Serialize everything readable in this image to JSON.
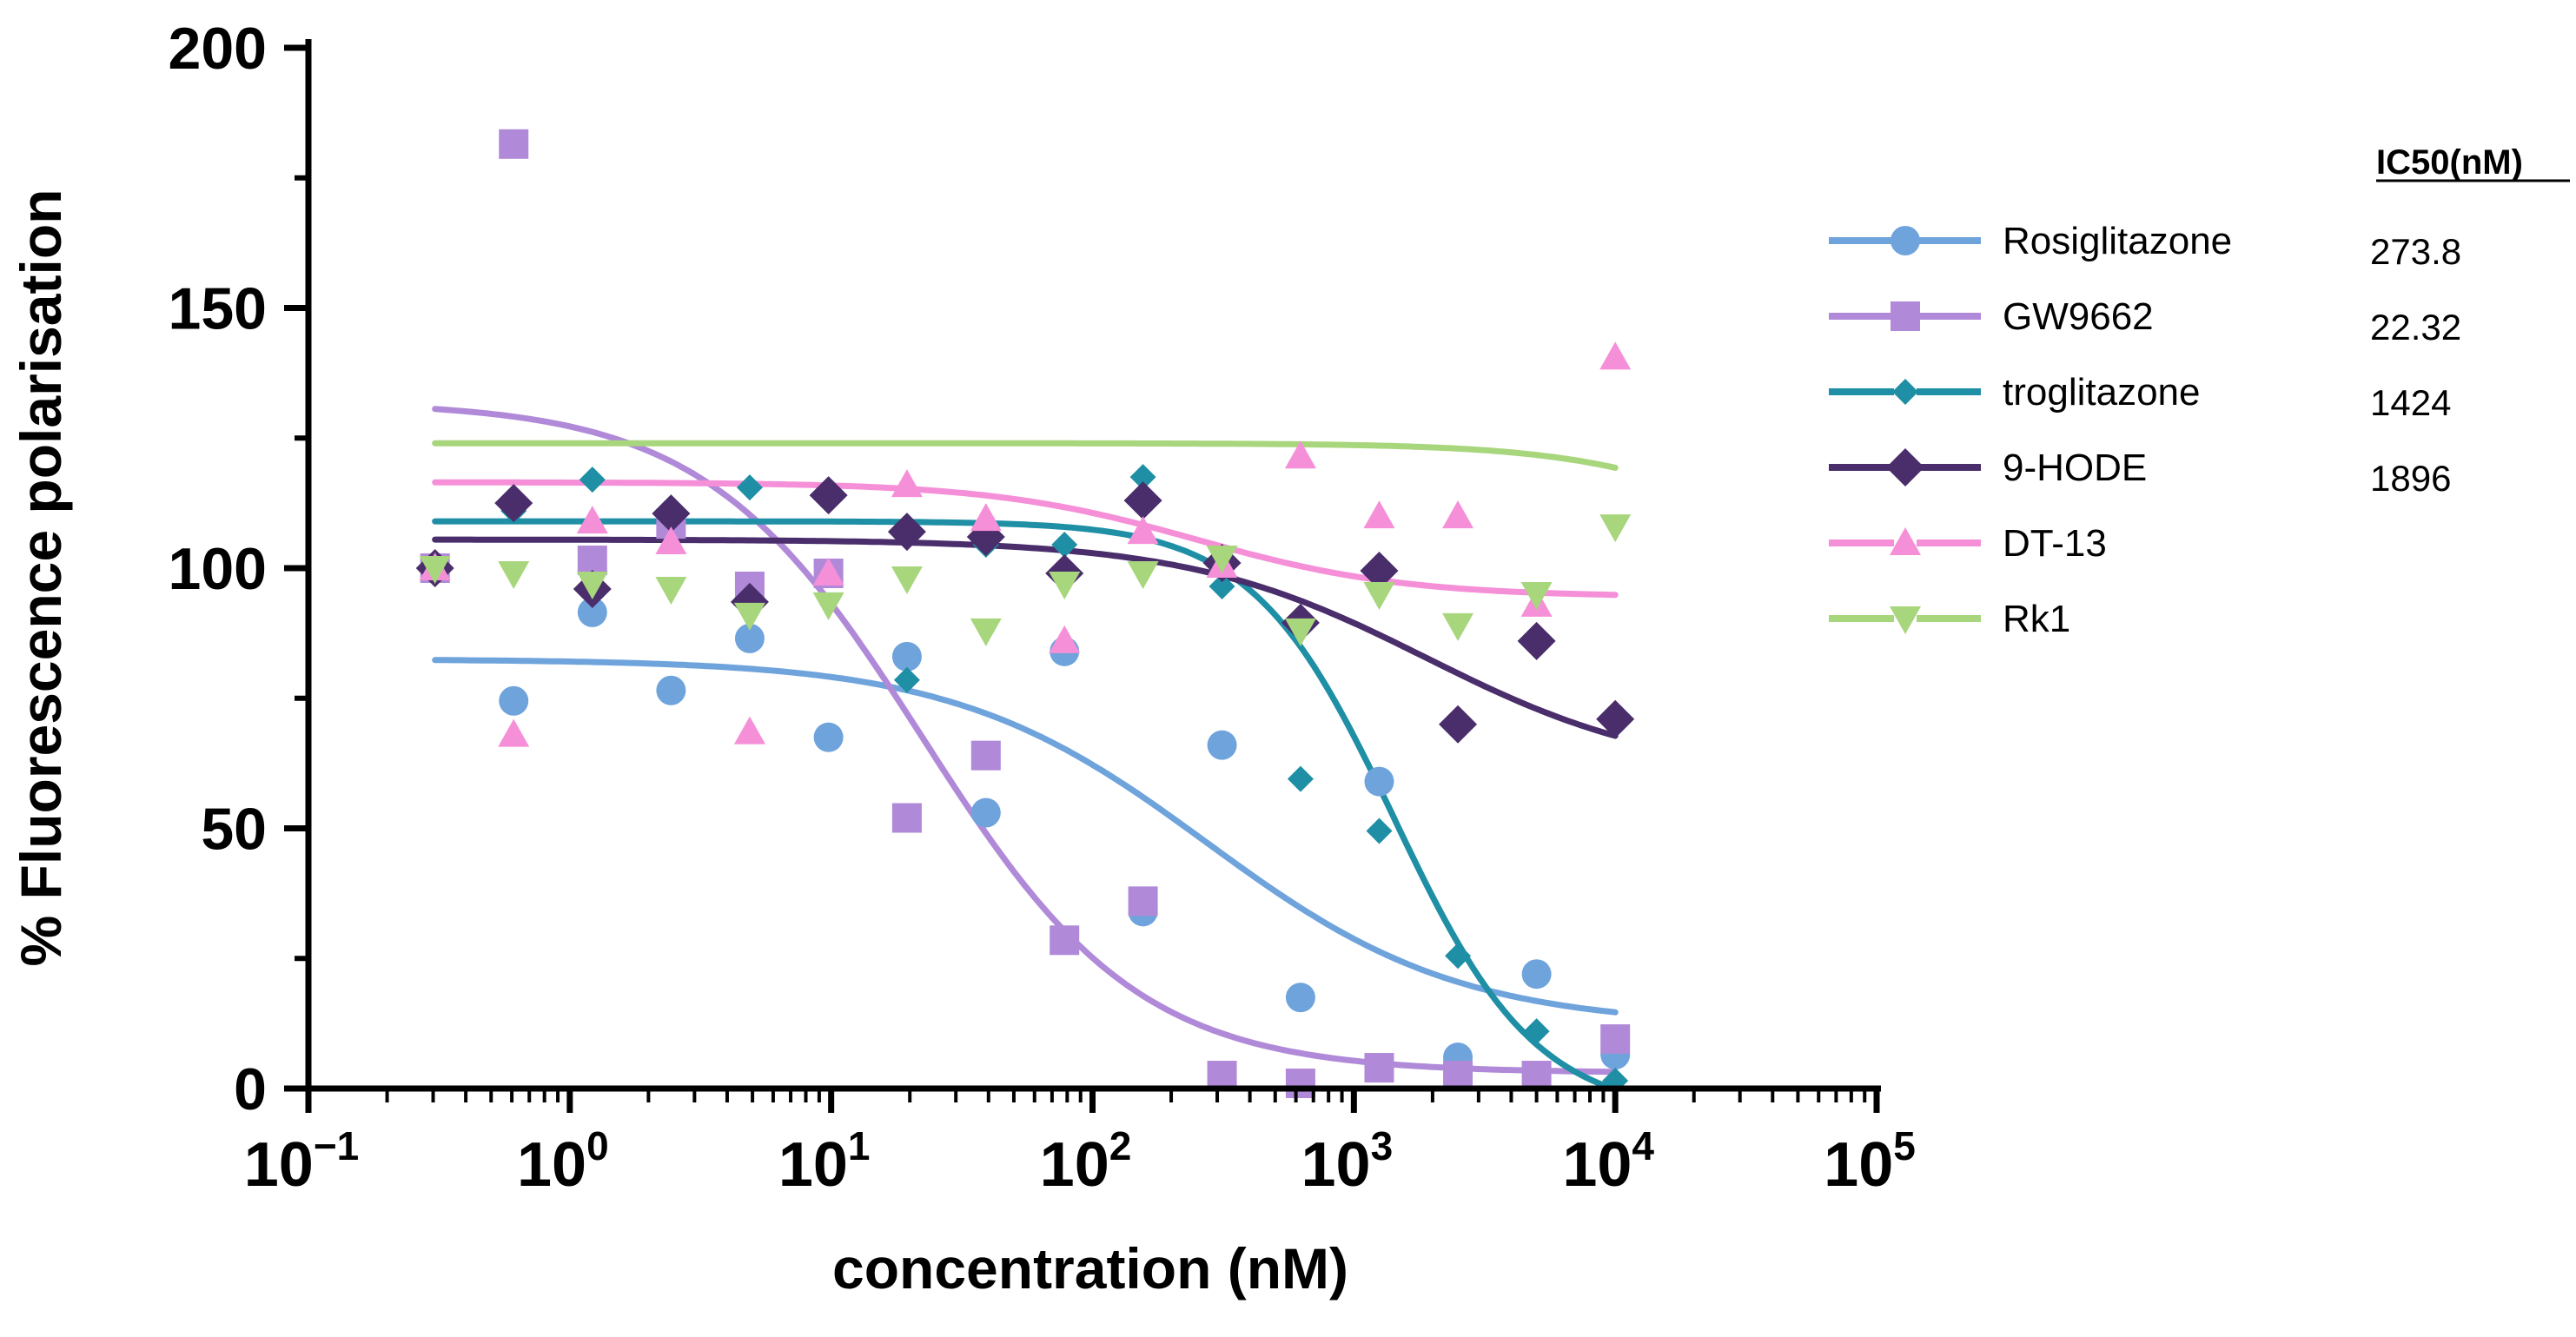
{
  "chart_data": {
    "type": "scatter",
    "xlabel": "concentration (nM)",
    "ylabel": "% Fluorescence polarisation",
    "xscale": "log",
    "xlim": [
      0.1,
      100000
    ],
    "ylim": [
      0,
      200
    ],
    "x_ticks": [
      {
        "base": "10",
        "exp": "−1"
      },
      {
        "base": "10",
        "exp": "0"
      },
      {
        "base": "10",
        "exp": "1"
      },
      {
        "base": "10",
        "exp": "2"
      },
      {
        "base": "10",
        "exp": "3"
      },
      {
        "base": "10",
        "exp": "4"
      },
      {
        "base": "10",
        "exp": "5"
      }
    ],
    "y_ticks": [
      "0",
      "50",
      "100",
      "150",
      "200"
    ],
    "legend_position": "right",
    "ic50_header": "IC50(nM)",
    "series": [
      {
        "name": "Rosiglitazone",
        "ic50": "273.8",
        "color": "#6fa3dc",
        "marker": "circle",
        "x": [
          0.305,
          0.61,
          1.22,
          2.44,
          4.88,
          9.77,
          19.5,
          39.1,
          78.1,
          156,
          313,
          625,
          1250,
          2500,
          5000,
          10000
        ],
        "y": [
          100,
          74.5,
          91.5,
          76.5,
          86.5,
          67.5,
          83,
          53,
          84,
          34,
          66,
          17.5,
          59,
          6,
          22,
          6.5
        ],
        "fit": {
          "top": 82.5,
          "bottom": 12,
          "ic50": 273.8,
          "hill": 0.9
        }
      },
      {
        "name": "GW9662",
        "ic50": "22.32",
        "color": "#b08ad8",
        "marker": "square",
        "x": [
          0.305,
          0.61,
          1.22,
          2.44,
          4.88,
          9.77,
          19.5,
          39.1,
          78.1,
          156,
          313,
          625,
          1250,
          2500,
          5000,
          10000
        ],
        "y": [
          100,
          181.5,
          101.5,
          108.5,
          96.5,
          99,
          52,
          64,
          28.5,
          36,
          2.5,
          1,
          4,
          2.5,
          2.5,
          9.5
        ],
        "fit": {
          "top": 132,
          "bottom": 3,
          "ic50": 22.32,
          "hill": 1.05
        }
      },
      {
        "name": "troglitazone",
        "ic50": "1424",
        "color": "#1f8fa5",
        "marker": "diamond",
        "x": [
          0.305,
          0.61,
          1.22,
          2.44,
          4.88,
          9.77,
          19.5,
          39.1,
          78.1,
          156,
          313,
          625,
          1250,
          2500,
          5000,
          10000
        ],
        "y": [
          100,
          111,
          117,
          110,
          115.5,
          113,
          78.5,
          104.5,
          104.5,
          117.5,
          96.5,
          59.5,
          49.5,
          25.5,
          11,
          1.5
        ],
        "fit": {
          "top": 109,
          "bottom": -5,
          "ic50": 1424,
          "hill": 1.6
        }
      },
      {
        "name": "9-HODE",
        "ic50": "1896",
        "color": "#4a2d6b",
        "marker": "diamond-large",
        "x": [
          0.305,
          0.61,
          1.22,
          2.44,
          4.88,
          9.77,
          19.5,
          39.1,
          78.1,
          156,
          313,
          625,
          1250,
          2500,
          5000,
          10000
        ],
        "y": [
          100,
          112.5,
          96,
          110.5,
          93.5,
          114,
          107,
          106,
          99,
          113,
          101,
          89.5,
          99.5,
          70,
          86,
          71
        ],
        "fit": {
          "top": 105.5,
          "bottom": 60,
          "ic50": 1896,
          "hill": 0.95
        }
      },
      {
        "name": "DT-13",
        "ic50": "",
        "color": "#f58fd8",
        "marker": "triangle-up",
        "x": [
          0.305,
          0.61,
          1.22,
          2.44,
          4.88,
          9.77,
          19.5,
          39.1,
          78.1,
          156,
          313,
          625,
          1250,
          2500,
          5000,
          10000
        ],
        "y": [
          100,
          68,
          109,
          105,
          68.5,
          99,
          116,
          109.5,
          86,
          107,
          100.5,
          121.5,
          110,
          110,
          93,
          140.5
        ],
        "fit": {
          "top": 116.5,
          "bottom": 94.5,
          "ic50": 250,
          "hill": 1.1
        }
      },
      {
        "name": "Rk1",
        "ic50": "",
        "color": "#a8d67d",
        "marker": "triangle-down",
        "x": [
          0.305,
          0.61,
          1.22,
          2.44,
          4.88,
          9.77,
          19.5,
          39.1,
          78.1,
          156,
          313,
          625,
          1250,
          2500,
          5000,
          10000
        ],
        "y": [
          100,
          99,
          97,
          96,
          91,
          93,
          98,
          88,
          97,
          99,
          102,
          88,
          95,
          89,
          95,
          108
        ],
        "fit": {
          "top": 124,
          "bottom": 94.5,
          "ic50": 40000,
          "hill": 1.2
        }
      }
    ]
  }
}
